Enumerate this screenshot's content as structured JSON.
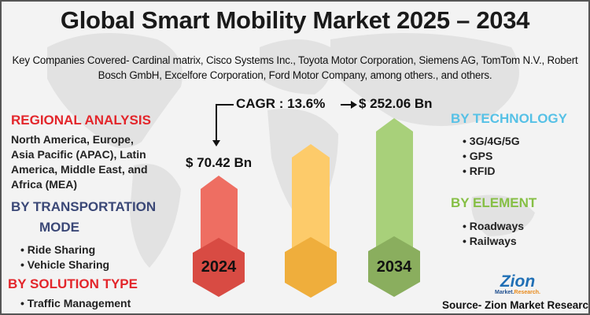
{
  "title": "Global Smart Mobility Market 2025 – 2034",
  "companies": "Key Companies Covered- Cardinal matrix, Cisco Systems Inc., Toyota Motor Corporation, Siemens AG, TomTom N.V., Robert Bosch GmbH, Excelfore Corporation, Ford Motor Company, among others., and others.",
  "cagr": "CAGR : 13.6%",
  "value_start": "$ 70.42 Bn",
  "value_end": "$ 252.06 Bn",
  "year_start": "2024",
  "year_end": "2034",
  "colors": {
    "red_bar": "#ee6e62",
    "red_hex": "#d84b43",
    "yellow_bar": "#fdcb6a",
    "yellow_hex": "#efae3c",
    "green_bar": "#a8d07a",
    "green_hex": "#8aae5e"
  },
  "left": {
    "regional_title": "REGIONAL ANALYSIS",
    "regional_lines": [
      "North America, Europe,",
      "Asia Pacific (APAC), Latin",
      "America, Middle East, and",
      "Africa (MEA)"
    ],
    "transport_title_1": "BY TRANSPORTATION",
    "transport_title_2": "MODE",
    "transport_items": [
      "Ride Sharing",
      "Vehicle Sharing"
    ],
    "solution_title": "BY SOLUTION TYPE",
    "solution_items": [
      "Traffic Management"
    ]
  },
  "right": {
    "technology_title": "BY TECHNOLOGY",
    "technology_items": [
      "3G/4G/5G",
      "GPS",
      "RFID"
    ],
    "element_title": "BY ELEMENT",
    "element_items": [
      "Roadways",
      "Railways"
    ]
  },
  "logo": {
    "brand": "Zion",
    "sub": "Market.Research."
  },
  "source": "Source- Zion Market Research"
}
